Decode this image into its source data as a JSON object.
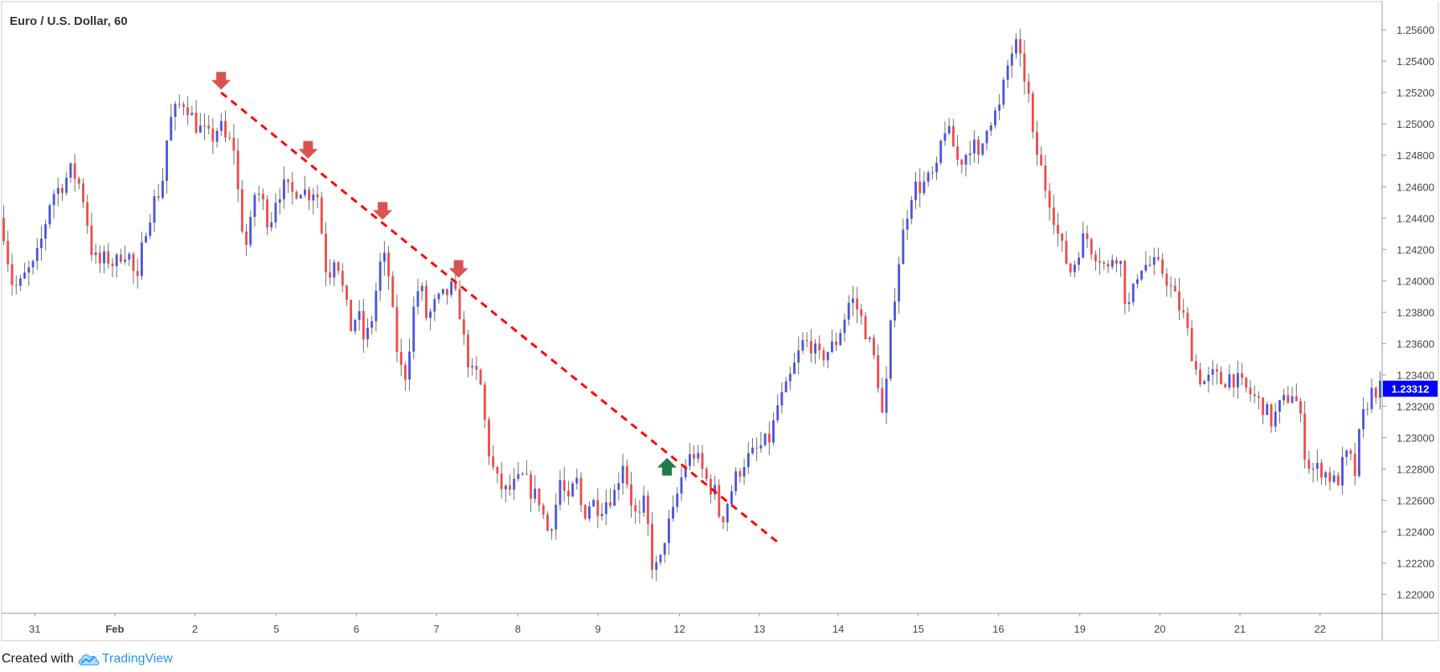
{
  "chart_data": {
    "type": "candlestick",
    "title": "Euro / U.S. Dollar, 60",
    "xlabel": "",
    "ylabel": "",
    "ylim": [
      1.2188,
      1.2578
    ],
    "y_ticks": [
      "1.25600",
      "1.25400",
      "1.25200",
      "1.25000",
      "1.24800",
      "1.24600",
      "1.24400",
      "1.24200",
      "1.24000",
      "1.23800",
      "1.23600",
      "1.23400",
      "1.23200",
      "1.23000",
      "1.22800",
      "1.22600",
      "1.22400",
      "1.22200",
      "1.22000"
    ],
    "x_labels": [
      {
        "label": "31",
        "pos": 0.024
      },
      {
        "label": "Feb",
        "pos": 0.082
      },
      {
        "label": "2",
        "pos": 0.14
      },
      {
        "label": "5",
        "pos": 0.199
      },
      {
        "label": "6",
        "pos": 0.257
      },
      {
        "label": "7",
        "pos": 0.315
      },
      {
        "label": "8",
        "pos": 0.374
      },
      {
        "label": "9",
        "pos": 0.432
      },
      {
        "label": "12",
        "pos": 0.491
      },
      {
        "label": "13",
        "pos": 0.549
      },
      {
        "label": "14",
        "pos": 0.606
      },
      {
        "label": "15",
        "pos": 0.664
      },
      {
        "label": "16",
        "pos": 0.722
      },
      {
        "label": "19",
        "pos": 0.781
      },
      {
        "label": "20",
        "pos": 0.839
      },
      {
        "label": "21",
        "pos": 0.897
      },
      {
        "label": "22",
        "pos": 0.955
      }
    ],
    "path_points": [
      [
        0.0,
        1.244
      ],
      [
        0.007,
        1.24
      ],
      [
        0.012,
        1.2395
      ],
      [
        0.018,
        1.2405
      ],
      [
        0.024,
        1.241
      ],
      [
        0.03,
        1.243
      ],
      [
        0.036,
        1.2455
      ],
      [
        0.043,
        1.246
      ],
      [
        0.05,
        1.247
      ],
      [
        0.055,
        1.2465
      ],
      [
        0.06,
        1.245
      ],
      [
        0.065,
        1.242
      ],
      [
        0.07,
        1.241
      ],
      [
        0.076,
        1.2415
      ],
      [
        0.082,
        1.241
      ],
      [
        0.088,
        1.242
      ],
      [
        0.093,
        1.2415
      ],
      [
        0.098,
        1.2395
      ],
      [
        0.103,
        1.243
      ],
      [
        0.11,
        1.245
      ],
      [
        0.116,
        1.246
      ],
      [
        0.121,
        1.25
      ],
      [
        0.127,
        1.251
      ],
      [
        0.133,
        1.2515
      ],
      [
        0.14,
        1.25
      ],
      [
        0.146,
        1.2495
      ],
      [
        0.152,
        1.249
      ],
      [
        0.158,
        1.25
      ],
      [
        0.162,
        1.249
      ],
      [
        0.168,
        1.2487
      ],
      [
        0.173,
        1.244
      ],
      [
        0.178,
        1.242
      ],
      [
        0.184,
        1.246
      ],
      [
        0.189,
        1.245
      ],
      [
        0.194,
        1.2435
      ],
      [
        0.199,
        1.2455
      ],
      [
        0.205,
        1.246
      ],
      [
        0.21,
        1.2455
      ],
      [
        0.216,
        1.246
      ],
      [
        0.222,
        1.2455
      ],
      [
        0.228,
        1.246
      ],
      [
        0.232,
        1.243
      ],
      [
        0.236,
        1.24
      ],
      [
        0.242,
        1.242
      ],
      [
        0.248,
        1.239
      ],
      [
        0.253,
        1.237
      ],
      [
        0.258,
        1.238
      ],
      [
        0.263,
        1.236
      ],
      [
        0.268,
        1.2375
      ],
      [
        0.274,
        1.241
      ],
      [
        0.279,
        1.2415
      ],
      [
        0.283,
        1.238
      ],
      [
        0.288,
        1.2345
      ],
      [
        0.293,
        1.234
      ],
      [
        0.298,
        1.238
      ],
      [
        0.303,
        1.24
      ],
      [
        0.308,
        1.2375
      ],
      [
        0.314,
        1.2385
      ],
      [
        0.32,
        1.239
      ],
      [
        0.326,
        1.2395
      ],
      [
        0.331,
        1.2385
      ],
      [
        0.336,
        1.2355
      ],
      [
        0.341,
        1.234
      ],
      [
        0.346,
        1.234
      ],
      [
        0.35,
        1.231
      ],
      [
        0.354,
        1.2285
      ],
      [
        0.36,
        1.227
      ],
      [
        0.366,
        1.2265
      ],
      [
        0.372,
        1.227
      ],
      [
        0.378,
        1.2275
      ],
      [
        0.384,
        1.2265
      ],
      [
        0.39,
        1.226
      ],
      [
        0.395,
        1.224
      ],
      [
        0.4,
        1.225
      ],
      [
        0.405,
        1.2275
      ],
      [
        0.41,
        1.2255
      ],
      [
        0.416,
        1.2275
      ],
      [
        0.421,
        1.225
      ],
      [
        0.427,
        1.226
      ],
      [
        0.433,
        1.2255
      ],
      [
        0.438,
        1.226
      ],
      [
        0.444,
        1.2265
      ],
      [
        0.45,
        1.2285
      ],
      [
        0.456,
        1.226
      ],
      [
        0.461,
        1.2245
      ],
      [
        0.466,
        1.226
      ],
      [
        0.471,
        1.222
      ],
      [
        0.476,
        1.2215
      ],
      [
        0.481,
        1.224
      ],
      [
        0.486,
        1.225
      ],
      [
        0.491,
        1.227
      ],
      [
        0.496,
        1.2285
      ],
      [
        0.502,
        1.229
      ],
      [
        0.507,
        1.228
      ],
      [
        0.512,
        1.227
      ],
      [
        0.517,
        1.2265
      ],
      [
        0.521,
        1.2245
      ],
      [
        0.526,
        1.226
      ],
      [
        0.532,
        1.2275
      ],
      [
        0.538,
        1.2285
      ],
      [
        0.545,
        1.229
      ],
      [
        0.551,
        1.2295
      ],
      [
        0.557,
        1.23
      ],
      [
        0.562,
        1.232
      ],
      [
        0.568,
        1.233
      ],
      [
        0.574,
        1.2345
      ],
      [
        0.58,
        1.236
      ],
      [
        0.586,
        1.236
      ],
      [
        0.592,
        1.235
      ],
      [
        0.598,
        1.2355
      ],
      [
        0.604,
        1.236
      ],
      [
        0.61,
        1.2375
      ],
      [
        0.615,
        1.239
      ],
      [
        0.621,
        1.238
      ],
      [
        0.627,
        1.2365
      ],
      [
        0.632,
        1.235
      ],
      [
        0.636,
        1.233
      ],
      [
        0.639,
        1.2305
      ],
      [
        0.641,
        1.2335
      ],
      [
        0.644,
        1.237
      ],
      [
        0.648,
        1.24
      ],
      [
        0.651,
        1.242
      ],
      [
        0.655,
        1.244
      ],
      [
        0.66,
        1.246
      ],
      [
        0.666,
        1.246
      ],
      [
        0.672,
        1.2465
      ],
      [
        0.678,
        1.247
      ],
      [
        0.682,
        1.25
      ],
      [
        0.688,
        1.249
      ],
      [
        0.693,
        1.2475
      ],
      [
        0.698,
        1.248
      ],
      [
        0.703,
        1.249
      ],
      [
        0.708,
        1.2475
      ],
      [
        0.713,
        1.25
      ],
      [
        0.718,
        1.2505
      ],
      [
        0.723,
        1.251
      ],
      [
        0.727,
        1.253
      ],
      [
        0.731,
        1.2545
      ],
      [
        0.735,
        1.255
      ],
      [
        0.739,
        1.2535
      ],
      [
        0.743,
        1.2525
      ],
      [
        0.747,
        1.249
      ],
      [
        0.752,
        1.2475
      ],
      [
        0.756,
        1.246
      ],
      [
        0.76,
        1.245
      ],
      [
        0.765,
        1.243
      ],
      [
        0.77,
        1.2415
      ],
      [
        0.775,
        1.2405
      ],
      [
        0.78,
        1.242
      ],
      [
        0.785,
        1.243
      ],
      [
        0.79,
        1.242
      ],
      [
        0.796,
        1.2415
      ],
      [
        0.801,
        1.2405
      ],
      [
        0.806,
        1.242
      ],
      [
        0.811,
        1.241
      ],
      [
        0.815,
        1.238
      ],
      [
        0.819,
        1.239
      ],
      [
        0.824,
        1.241
      ],
      [
        0.83,
        1.241
      ],
      [
        0.836,
        1.241
      ],
      [
        0.842,
        1.2405
      ],
      [
        0.847,
        1.2395
      ],
      [
        0.852,
        1.2385
      ],
      [
        0.857,
        1.2375
      ],
      [
        0.862,
        1.2355
      ],
      [
        0.866,
        1.234
      ],
      [
        0.872,
        1.2335
      ],
      [
        0.878,
        1.234
      ],
      [
        0.884,
        1.2335
      ],
      [
        0.89,
        1.234
      ],
      [
        0.896,
        1.2335
      ],
      [
        0.902,
        1.233
      ],
      [
        0.908,
        1.2325
      ],
      [
        0.914,
        1.232
      ],
      [
        0.92,
        1.231
      ],
      [
        0.926,
        1.232
      ],
      [
        0.931,
        1.2325
      ],
      [
        0.936,
        1.233
      ],
      [
        0.941,
        1.231
      ],
      [
        0.945,
        1.2285
      ],
      [
        0.95,
        1.228
      ],
      [
        0.956,
        1.228
      ],
      [
        0.962,
        1.2275
      ],
      [
        0.967,
        1.227
      ],
      [
        0.972,
        1.2285
      ],
      [
        0.976,
        1.229
      ],
      [
        0.98,
        1.2275
      ],
      [
        0.984,
        1.2305
      ],
      [
        0.988,
        1.232
      ],
      [
        0.993,
        1.233
      ],
      [
        0.998,
        1.2331
      ]
    ],
    "last_price": "1.23312",
    "trendline": {
      "from": [
        0.159,
        1.252
      ],
      "to": [
        0.564,
        1.2232
      ],
      "color": "#ff0000",
      "style": "dashed"
    },
    "arrows": [
      {
        "direction": "down",
        "at": [
          0.159,
          1.2526
        ],
        "color": "#d9534f"
      },
      {
        "direction": "down",
        "at": [
          0.222,
          1.2482
        ],
        "color": "#d9534f"
      },
      {
        "direction": "down",
        "at": [
          0.276,
          1.2443
        ],
        "color": "#d9534f"
      },
      {
        "direction": "down",
        "at": [
          0.331,
          1.2406
        ],
        "color": "#d9534f"
      },
      {
        "direction": "up",
        "at": [
          0.482,
          1.2282
        ],
        "color": "#1e7b4a"
      }
    ],
    "colors": {
      "up": "#4a53e0",
      "down": "#ef4a4a",
      "wick": "#6b6b6b",
      "price_badge": "#0000ff"
    },
    "grid": false,
    "legend": "none"
  },
  "footer": {
    "created_with": "Created with",
    "brand": "TradingView"
  }
}
